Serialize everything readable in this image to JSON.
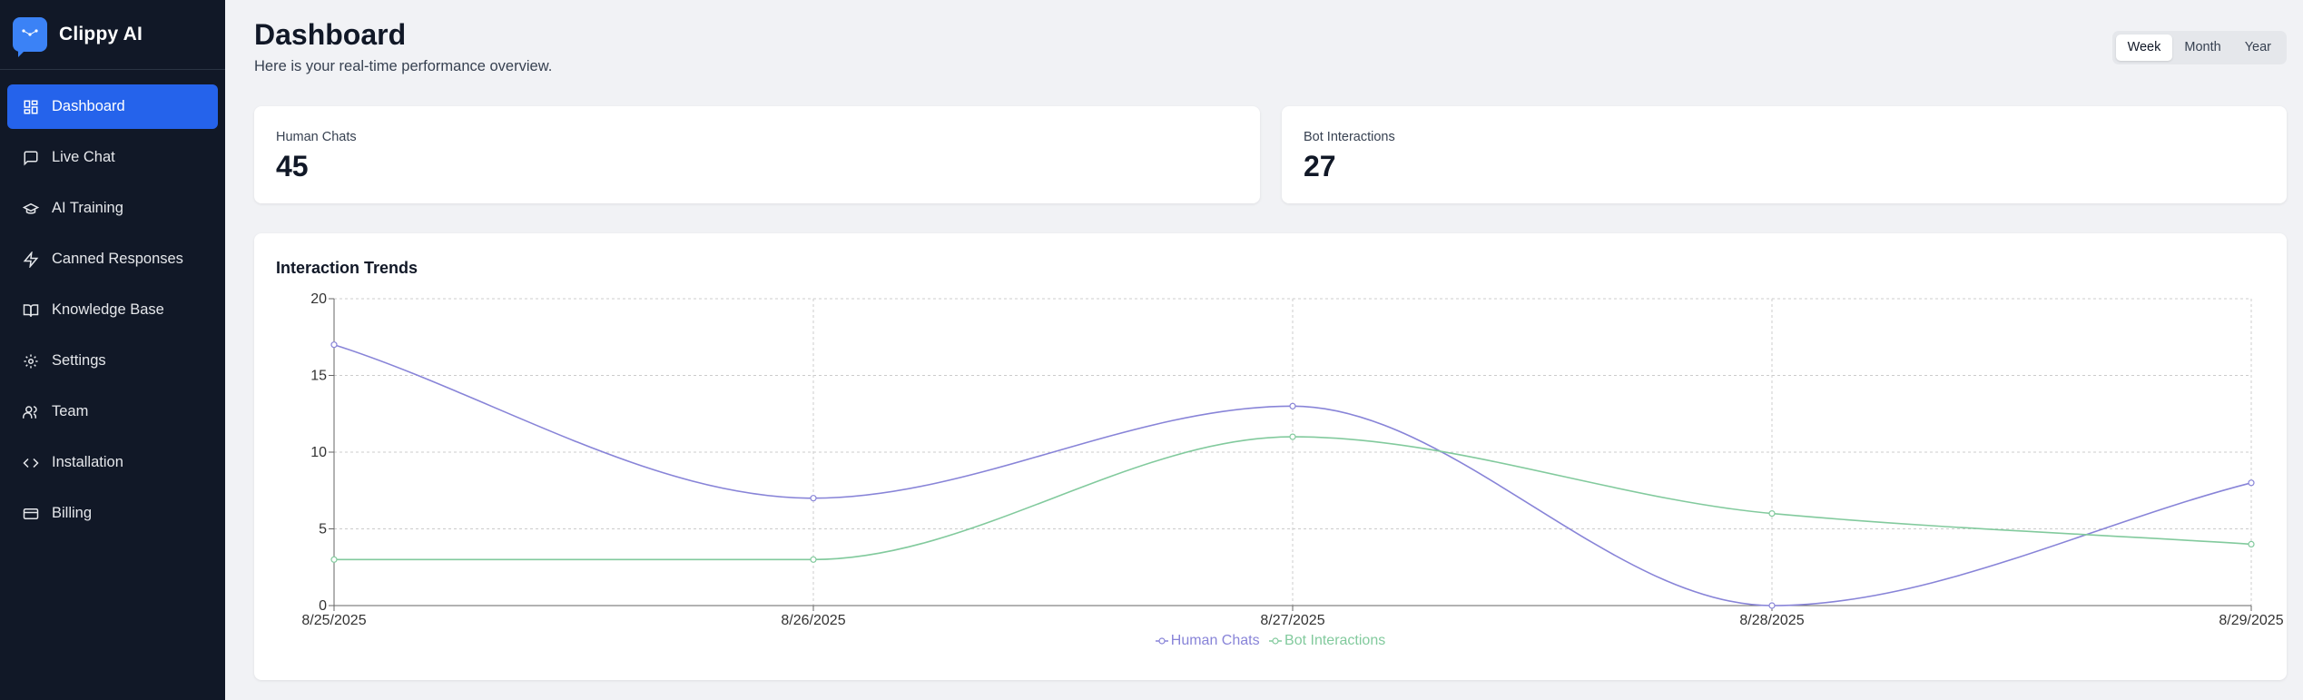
{
  "app": {
    "name": "Clippy AI"
  },
  "sidebar": {
    "items": [
      {
        "label": "Dashboard",
        "icon": "dashboard-icon",
        "active": true
      },
      {
        "label": "Live Chat",
        "icon": "chat-icon"
      },
      {
        "label": "AI Training",
        "icon": "graduation-cap-icon"
      },
      {
        "label": "Canned Responses",
        "icon": "lightning-icon"
      },
      {
        "label": "Knowledge Base",
        "icon": "book-icon"
      },
      {
        "label": "Settings",
        "icon": "gear-icon"
      },
      {
        "label": "Team",
        "icon": "users-icon"
      },
      {
        "label": "Installation",
        "icon": "code-icon"
      },
      {
        "label": "Billing",
        "icon": "credit-card-icon"
      }
    ]
  },
  "header": {
    "title": "Dashboard",
    "subtitle": "Here is your real-time performance overview."
  },
  "range": {
    "options": [
      "Week",
      "Month",
      "Year"
    ],
    "selected": "Week"
  },
  "stats": {
    "human": {
      "label": "Human Chats",
      "value": "45"
    },
    "bot": {
      "label": "Bot Interactions",
      "value": "27"
    }
  },
  "chart": {
    "title": "Interaction Trends"
  },
  "colors": {
    "human": "#8884d8",
    "bot": "#82ca9d",
    "accent": "#2563eb",
    "sidebar": "#111827"
  },
  "chart_data": {
    "type": "line",
    "categories": [
      "8/25/2025",
      "8/26/2025",
      "8/27/2025",
      "8/28/2025",
      "8/29/2025"
    ],
    "series": [
      {
        "name": "Human Chats",
        "values": [
          17,
          7,
          13,
          0,
          8
        ]
      },
      {
        "name": "Bot Interactions",
        "values": [
          3,
          3,
          11,
          6,
          4
        ]
      }
    ],
    "yticks": [
      0,
      5,
      10,
      15,
      20
    ],
    "ylim": [
      0,
      20
    ],
    "grid": true,
    "legend": "bottom-center"
  }
}
